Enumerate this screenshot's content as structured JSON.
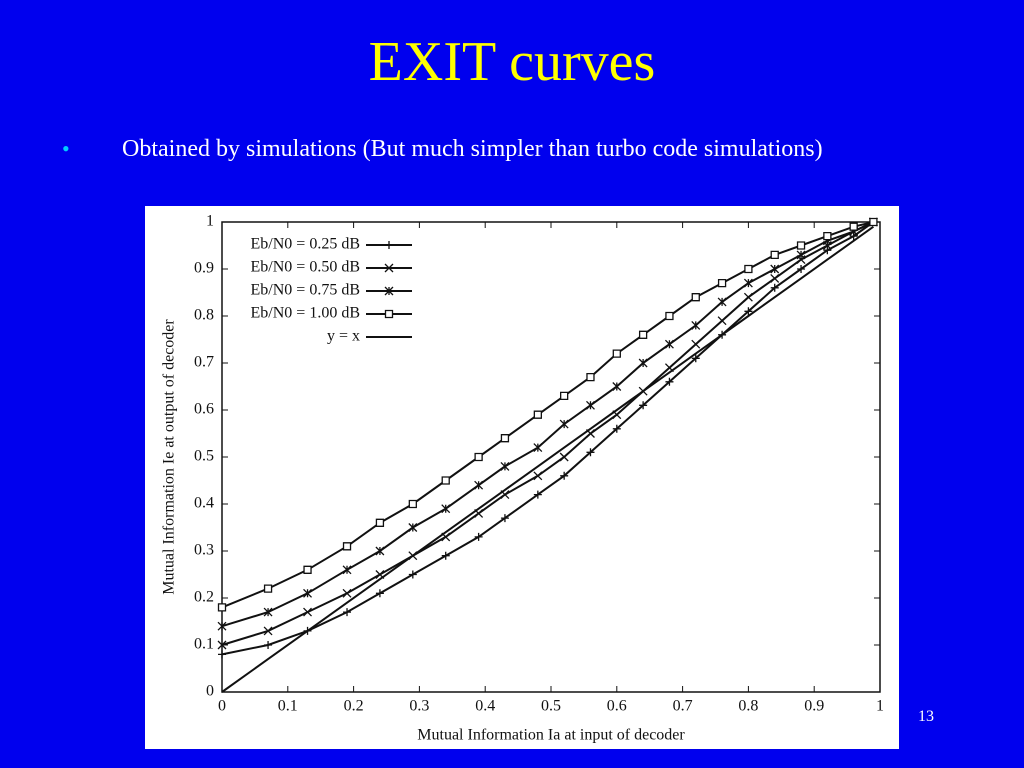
{
  "slide": {
    "title": "EXIT curves",
    "bullet": "Obtained by simulations (But much simpler than turbo code simulations)",
    "page_number": "13"
  },
  "chart_data": {
    "type": "line",
    "xlabel": "Mutual Information Ia at input of decoder",
    "ylabel": "Mutual Information Ie at output of decoder",
    "x": [
      0,
      0.07,
      0.13,
      0.19,
      0.24,
      0.29,
      0.34,
      0.39,
      0.43,
      0.48,
      0.52,
      0.56,
      0.6,
      0.64,
      0.68,
      0.72,
      0.76,
      0.8,
      0.84,
      0.88,
      0.92,
      0.96,
      0.99
    ],
    "series": [
      {
        "name": "Eb/N0 = 0.25 dB",
        "color": "#111111",
        "marker": "plus",
        "values": [
          0.08,
          0.1,
          0.13,
          0.17,
          0.21,
          0.25,
          0.29,
          0.33,
          0.37,
          0.42,
          0.46,
          0.51,
          0.56,
          0.61,
          0.66,
          0.71,
          0.76,
          0.81,
          0.86,
          0.9,
          0.94,
          0.97,
          1.0
        ]
      },
      {
        "name": "Eb/N0 = 0.50 dB",
        "color": "#111111",
        "marker": "x",
        "values": [
          0.1,
          0.13,
          0.17,
          0.21,
          0.25,
          0.29,
          0.33,
          0.38,
          0.42,
          0.46,
          0.5,
          0.55,
          0.59,
          0.64,
          0.69,
          0.74,
          0.79,
          0.84,
          0.88,
          0.92,
          0.95,
          0.98,
          1.0
        ]
      },
      {
        "name": "Eb/N0 = 0.75 dB",
        "color": "#111111",
        "marker": "star",
        "values": [
          0.14,
          0.17,
          0.21,
          0.26,
          0.3,
          0.35,
          0.39,
          0.44,
          0.48,
          0.52,
          0.57,
          0.61,
          0.65,
          0.7,
          0.74,
          0.78,
          0.83,
          0.87,
          0.9,
          0.93,
          0.96,
          0.98,
          1.0
        ]
      },
      {
        "name": "Eb/N0 = 1.00 dB",
        "color": "#111111",
        "marker": "square",
        "values": [
          0.18,
          0.22,
          0.26,
          0.31,
          0.36,
          0.4,
          0.45,
          0.5,
          0.54,
          0.59,
          0.63,
          0.67,
          0.72,
          0.76,
          0.8,
          0.84,
          0.87,
          0.9,
          0.93,
          0.95,
          0.97,
          0.99,
          1.0
        ]
      },
      {
        "name": "y = x",
        "color": "#111111",
        "marker": "none",
        "values": [
          0,
          0.07,
          0.13,
          0.19,
          0.24,
          0.29,
          0.34,
          0.39,
          0.43,
          0.48,
          0.52,
          0.56,
          0.6,
          0.64,
          0.68,
          0.72,
          0.76,
          0.8,
          0.84,
          0.88,
          0.92,
          0.96,
          0.99
        ]
      }
    ],
    "xlim": [
      0,
      1
    ],
    "ylim": [
      0,
      1
    ],
    "xticks": [
      0,
      0.1,
      0.2,
      0.3,
      0.4,
      0.5,
      0.6,
      0.7,
      0.8,
      0.9,
      1
    ],
    "yticks": [
      0,
      0.1,
      0.2,
      0.3,
      0.4,
      0.5,
      0.6,
      0.7,
      0.8,
      0.9,
      1
    ],
    "grid": false,
    "legend": "upper left"
  }
}
